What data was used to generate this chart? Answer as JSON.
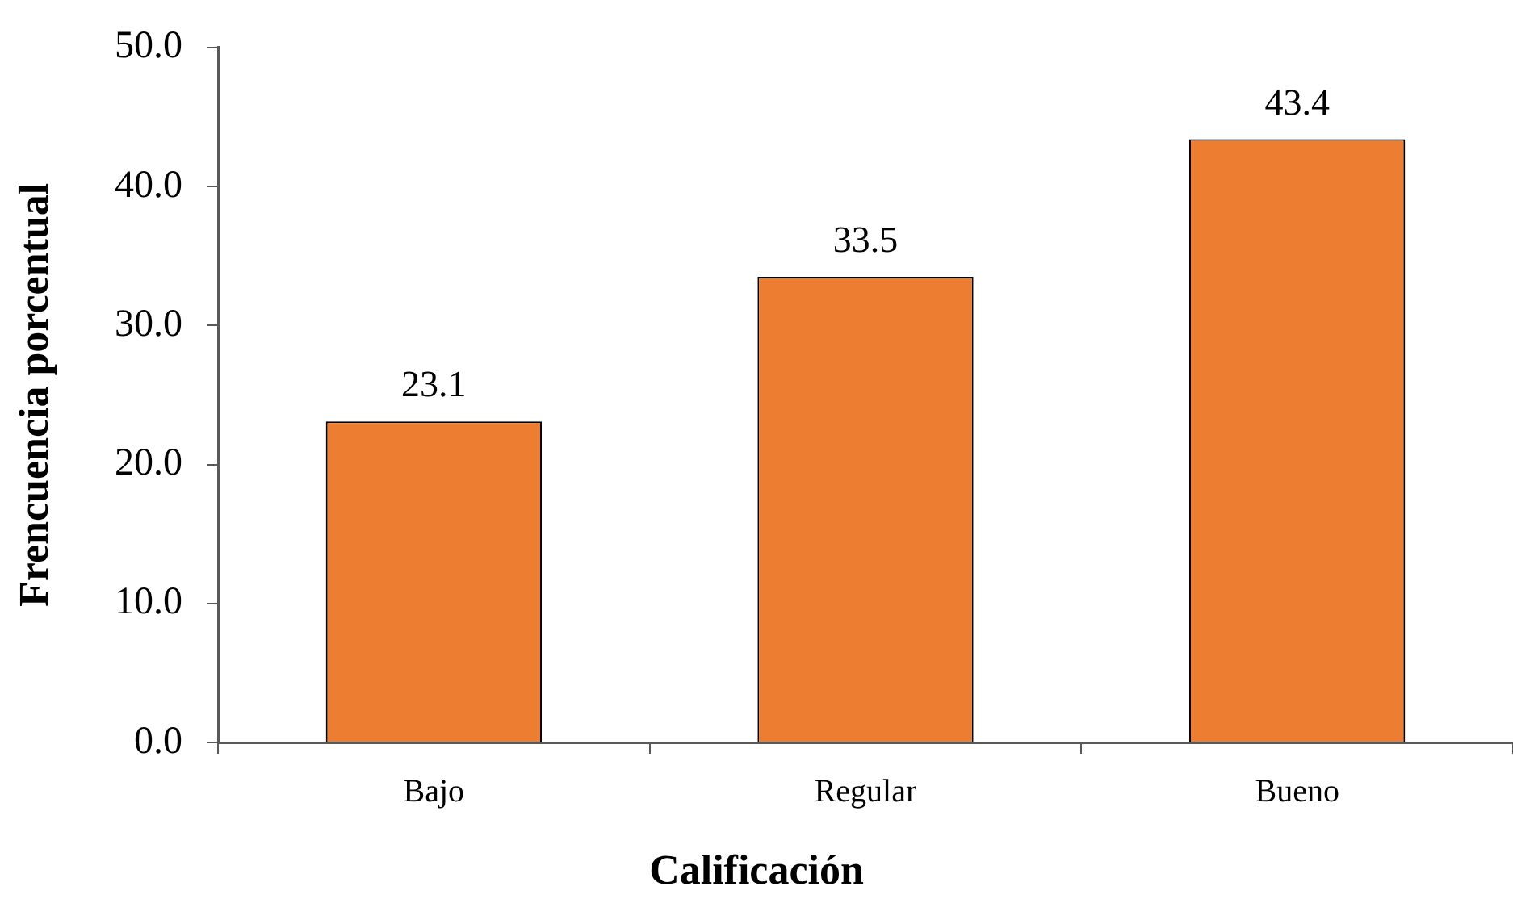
{
  "chart_data": {
    "type": "bar",
    "categories": [
      "Bajo",
      "Regular",
      "Bueno"
    ],
    "values": [
      23.1,
      33.5,
      43.4
    ],
    "color": "#ed7d31",
    "xlabel": "Calificación",
    "ylabel": "Frencuencia porcentual",
    "ylim": [
      0,
      50
    ],
    "yticks": [
      {
        "value": 0,
        "label": "0.0"
      },
      {
        "value": 10,
        "label": "10.0"
      },
      {
        "value": 20,
        "label": "20.0"
      },
      {
        "value": 30,
        "label": "30.0"
      },
      {
        "value": 40,
        "label": "40.0"
      },
      {
        "value": 50,
        "label": "50.0"
      }
    ],
    "data_labels": true,
    "grid": false,
    "legend": false
  }
}
